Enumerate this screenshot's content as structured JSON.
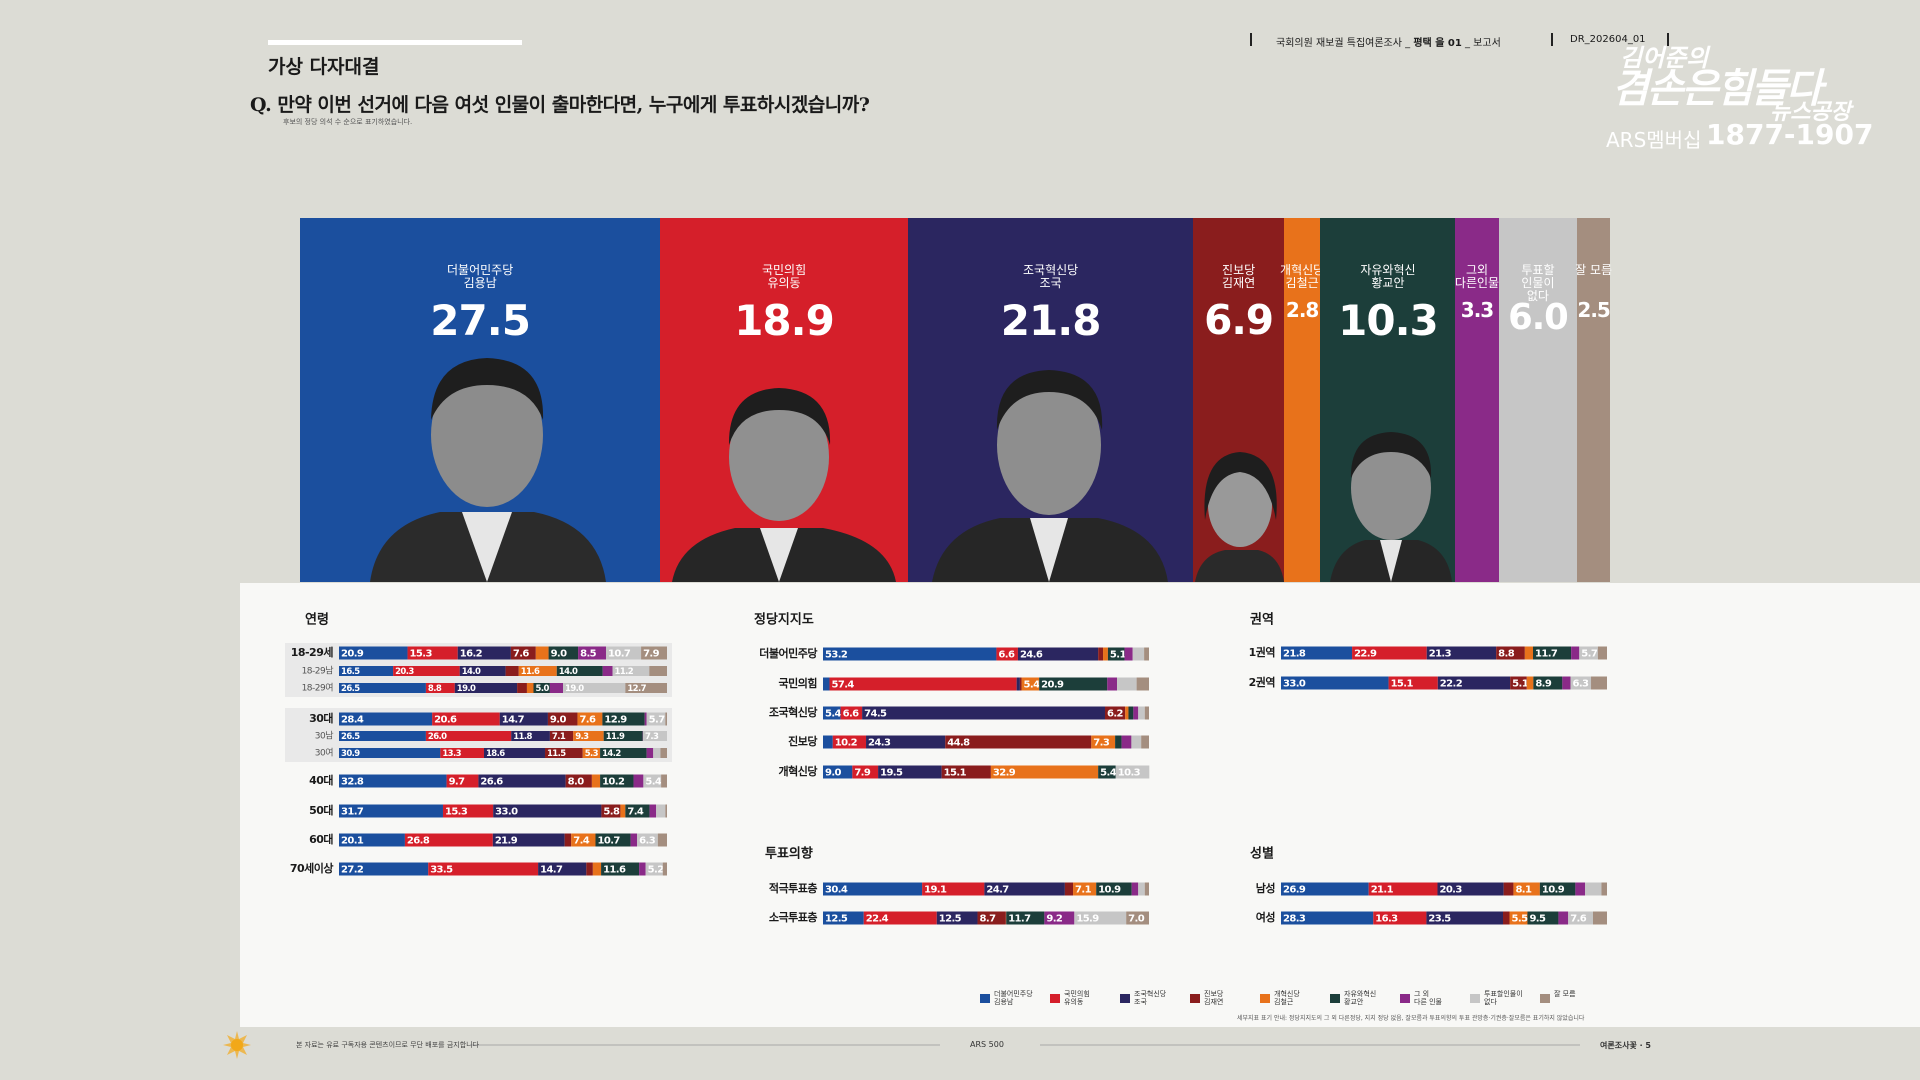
{
  "header": {
    "report_prefix": "국회의원 재보궐 특집여론조사 _ ",
    "district": "평택 을 01",
    "report_suffix": " _ 보고서",
    "code": "DR_202604_01",
    "logo_top": "김어준의",
    "logo_main": "겸손은힘들다",
    "logo_sub": "뉴스공장",
    "membership": "ARS멤버십",
    "phone": "1877-1907"
  },
  "footer": {
    "notice": "본 자료는 유료 구독자용 콘텐츠이므로 무단 배포를 금지합니다",
    "center": "ARS 500",
    "page": "여론조사꽃 · 5",
    "footnote": "세부지표 표기 안내: 정당지지도의 그 외 다른정당, 지지 정당 없음, 잘모름과 투표의향의 투표 관망층·기권층·잘모름은 표기하지 않았습니다"
  },
  "chart_data": [
    {
      "type": "stacked_strip",
      "title": "가상 다자대결",
      "question": "Q. 만약 이번 선거에 다음 여섯 인물이 출마한다면, 누구에게 투표하시겠습니까?",
      "note": "후보의 정당 의석 수 순으로 표기하였습니다.",
      "categories": [
        "더불어민주당\n김용남",
        "국민의힘\n유의동",
        "조국혁신당\n조국",
        "진보당\n김재연",
        "개혁신당\n김철근",
        "자유와혁신\n황교안",
        "그외\n다른인물",
        "투표할\n인물이\n없다",
        "잘 모름"
      ],
      "legend": [
        "더불어민주당\n김용남",
        "국민의힘\n유의동",
        "조국혁신당\n조국",
        "진보당\n김재연",
        "개혁신당\n김철근",
        "자유와혁신\n황교안",
        "그 외\n다른 인물",
        "투표할인물이\n없다",
        "잘 모름"
      ],
      "colors": [
        "#1b4f9e",
        "#d51f2a",
        "#2b2660",
        "#8a1d1d",
        "#e8721b",
        "#1c3e3a",
        "#8a2a88",
        "#c6c6c6",
        "#a48e7f"
      ],
      "values": [
        27.5,
        18.9,
        21.8,
        6.9,
        2.8,
        10.3,
        3.3,
        6.0,
        2.5
      ],
      "value_labels": [
        "27.5",
        "18.9",
        "21.8",
        "6.9",
        "2.8",
        "10.3",
        "3.3",
        "6.0",
        "2.5"
      ],
      "xlim": [
        0,
        100
      ]
    },
    {
      "type": "stacked_rows",
      "title": "연령",
      "xlim": [
        0,
        100
      ],
      "rows": [
        {
          "label": "18-29세",
          "values": [
            20.9,
            15.3,
            16.2,
            7.6,
            3.9,
            9.0,
            8.5,
            10.7,
            7.9
          ],
          "value_labels": [
            "20.9",
            "15.3",
            "16.2",
            "7.6",
            null,
            "9.0",
            "8.5",
            "10.7",
            "7.9"
          ]
        },
        {
          "label": "18-29남",
          "values": [
            16.5,
            20.3,
            14.0,
            4.0,
            11.6,
            14.0,
            3.0,
            11.2,
            5.4
          ],
          "value_labels": [
            "16.5",
            "20.3",
            "14.0",
            null,
            "11.6",
            "14.0",
            null,
            "11.2",
            null
          ]
        },
        {
          "label": "18-29여",
          "values": [
            26.5,
            8.8,
            19.0,
            3.0,
            2.0,
            5.0,
            4.0,
            19.0,
            12.7
          ],
          "value_labels": [
            "26.5",
            "8.8",
            "19.0",
            null,
            null,
            "5.0",
            null,
            "19.0",
            "12.7"
          ]
        },
        {
          "label": "30대",
          "values": [
            28.4,
            20.6,
            14.7,
            9.0,
            7.6,
            12.9,
            0.6,
            5.7,
            0.5
          ],
          "value_labels": [
            "28.4",
            "20.6",
            "14.7",
            "9.0",
            "7.6",
            "12.9",
            null,
            "5.7",
            null
          ]
        },
        {
          "label": "30남",
          "values": [
            26.5,
            26.0,
            11.8,
            7.1,
            9.3,
            11.9,
            0.1,
            7.3,
            0
          ],
          "value_labels": [
            "26.5",
            "26.0",
            "11.8",
            "7.1",
            "9.3",
            "11.9",
            null,
            "7.3",
            null
          ]
        },
        {
          "label": "30여",
          "values": [
            30.9,
            13.3,
            18.6,
            11.5,
            5.3,
            14.2,
            2.0,
            2.2,
            2.0
          ],
          "value_labels": [
            "30.9",
            "13.3",
            "18.6",
            "11.5",
            "5.3",
            "14.2",
            null,
            null,
            null
          ]
        },
        {
          "label": "40대",
          "values": [
            32.8,
            9.7,
            26.6,
            8.0,
            2.5,
            10.2,
            3.0,
            5.4,
            1.8
          ],
          "value_labels": [
            "32.8",
            "9.7",
            "26.6",
            "8.0",
            null,
            "10.2",
            null,
            "5.4",
            null
          ]
        },
        {
          "label": "50대",
          "values": [
            31.7,
            15.3,
            33.0,
            5.8,
            1.5,
            7.4,
            2.0,
            2.8,
            0.5
          ],
          "value_labels": [
            "31.7",
            "15.3",
            "33.0",
            "5.8",
            null,
            "7.4",
            null,
            null,
            null
          ]
        },
        {
          "label": "60대",
          "values": [
            20.1,
            26.8,
            21.9,
            2.0,
            7.4,
            10.7,
            2.0,
            6.3,
            2.8
          ],
          "value_labels": [
            "20.1",
            "26.8",
            "21.9",
            null,
            "7.4",
            "10.7",
            null,
            "6.3",
            null
          ]
        },
        {
          "label": "70세이상",
          "values": [
            27.2,
            33.5,
            14.7,
            2.0,
            2.5,
            11.6,
            2.0,
            5.2,
            1.3
          ],
          "value_labels": [
            "27.2",
            "33.5",
            "14.7",
            null,
            null,
            "11.6",
            null,
            "5.2",
            null
          ]
        }
      ]
    },
    {
      "type": "stacked_rows",
      "title": "정당지지도",
      "xlim": [
        0,
        100
      ],
      "rows": [
        {
          "label": "더불어민주당",
          "values": [
            53.2,
            6.6,
            24.6,
            1.5,
            1.5,
            5.1,
            2.5,
            3.5,
            1.5
          ],
          "value_labels": [
            "53.2",
            "6.6",
            "24.6",
            null,
            null,
            "5.1",
            null,
            null,
            null
          ]
        },
        {
          "label": "국민의힘",
          "values": [
            2.0,
            57.4,
            1.0,
            0.5,
            5.4,
            20.9,
            3.0,
            6.0,
            3.8
          ],
          "value_labels": [
            null,
            "57.4",
            null,
            null,
            "5.4",
            "20.9",
            null,
            null,
            null
          ]
        },
        {
          "label": "조국혁신당",
          "values": [
            5.4,
            6.6,
            74.5,
            6.2,
            1.0,
            1.5,
            1.5,
            2.0,
            1.3
          ],
          "value_labels": [
            "5.4",
            "6.6",
            "74.5",
            "6.2",
            null,
            null,
            null,
            null,
            null
          ]
        },
        {
          "label": "진보당",
          "values": [
            3.0,
            10.2,
            24.3,
            44.8,
            7.3,
            2.0,
            3.0,
            3.0,
            2.4
          ],
          "value_labels": [
            null,
            "10.2",
            "24.3",
            "44.8",
            "7.3",
            null,
            null,
            null,
            null
          ]
        },
        {
          "label": "개혁신당",
          "values": [
            9.0,
            7.9,
            19.5,
            15.1,
            32.9,
            5.4,
            0,
            10.3,
            0
          ],
          "value_labels": [
            "9.0",
            "7.9",
            "19.5",
            "15.1",
            "32.9",
            "5.4",
            null,
            "10.3",
            null
          ]
        }
      ]
    },
    {
      "type": "stacked_rows",
      "title": "권역",
      "xlim": [
        0,
        100
      ],
      "rows": [
        {
          "label": "1권역",
          "values": [
            21.8,
            22.9,
            21.3,
            8.8,
            2.5,
            11.7,
            2.5,
            5.7,
            2.8
          ],
          "value_labels": [
            "21.8",
            "22.9",
            "21.3",
            "8.8",
            null,
            "11.7",
            null,
            "5.7",
            null
          ]
        },
        {
          "label": "2권역",
          "values": [
            33.0,
            15.1,
            22.2,
            5.1,
            2.0,
            8.9,
            2.5,
            6.3,
            4.9
          ],
          "value_labels": [
            "33.0",
            "15.1",
            "22.2",
            "5.1",
            null,
            "8.9",
            null,
            "6.3",
            null
          ]
        }
      ]
    },
    {
      "type": "stacked_rows",
      "title": "투표의향",
      "xlim": [
        0,
        100
      ],
      "rows": [
        {
          "label": "적극투표층",
          "values": [
            30.4,
            19.1,
            24.7,
            2.5,
            7.1,
            10.9,
            2.0,
            2.0,
            1.3
          ],
          "value_labels": [
            "30.4",
            "19.1",
            "24.7",
            null,
            "7.1",
            "10.9",
            null,
            null,
            null
          ]
        },
        {
          "label": "소극투표층",
          "values": [
            12.5,
            22.4,
            12.5,
            8.7,
            0.1,
            11.7,
            9.2,
            15.9,
            7.0
          ],
          "value_labels": [
            "12.5",
            "22.4",
            "12.5",
            "8.7",
            null,
            "11.7",
            "9.2",
            "15.9",
            "7.0"
          ]
        }
      ]
    },
    {
      "type": "stacked_rows",
      "title": "성별",
      "xlim": [
        0,
        100
      ],
      "rows": [
        {
          "label": "남성",
          "values": [
            26.9,
            21.1,
            20.3,
            3.0,
            8.1,
            10.9,
            3.0,
            5.0,
            1.7
          ],
          "value_labels": [
            "26.9",
            "21.1",
            "20.3",
            null,
            "8.1",
            "10.9",
            null,
            null,
            null
          ]
        },
        {
          "label": "여성",
          "values": [
            28.3,
            16.3,
            23.5,
            2.0,
            5.5,
            9.5,
            3.0,
            7.6,
            4.3
          ],
          "value_labels": [
            "28.3",
            "16.3",
            "23.5",
            null,
            "5.5",
            "9.5",
            null,
            "7.6",
            null
          ]
        }
      ]
    }
  ]
}
